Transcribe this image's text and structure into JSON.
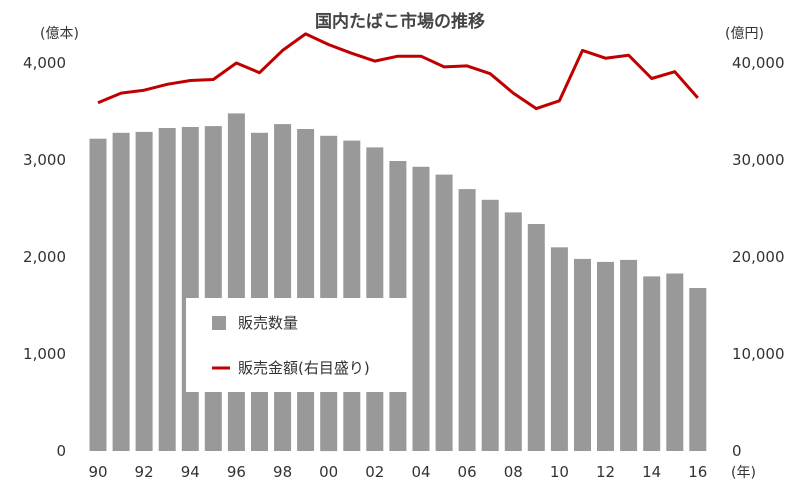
{
  "chart_data": {
    "type": "bar+line",
    "title": "国内たばこ市場の推移",
    "left_unit": "(億本)",
    "right_unit": "(億円)",
    "x_unit": "(年)",
    "x": [
      1990,
      1991,
      1992,
      1993,
      1994,
      1995,
      1996,
      1997,
      1998,
      1999,
      2000,
      2001,
      2002,
      2003,
      2004,
      2005,
      2006,
      2007,
      2008,
      2009,
      2010,
      2011,
      2012,
      2013,
      2014,
      2015,
      2016
    ],
    "x_tick_labels": [
      "90",
      "92",
      "94",
      "96",
      "98",
      "00",
      "02",
      "04",
      "06",
      "08",
      "10",
      "12",
      "14",
      "16"
    ],
    "left_axis": {
      "min": 0,
      "max": 4000,
      "ticks": [
        "0",
        "1,000",
        "2,000",
        "3,000",
        "4,000"
      ]
    },
    "right_axis": {
      "min": 0,
      "max": 40000,
      "ticks": [
        "0",
        "10,000",
        "20,000",
        "30,000",
        "40,000"
      ]
    },
    "series": [
      {
        "name": "販売数量",
        "type": "bar",
        "axis": "left",
        "color": "#999999",
        "values": [
          3220,
          3280,
          3290,
          3330,
          3340,
          3350,
          3480,
          3280,
          3370,
          3320,
          3250,
          3200,
          3130,
          2990,
          2930,
          2850,
          2700,
          2590,
          2460,
          2340,
          2100,
          1980,
          1950,
          1970,
          1800,
          1830,
          1680
        ]
      },
      {
        "name": "販売金額(右目盛り)",
        "type": "line",
        "axis": "right",
        "color": "#c00000",
        "values": [
          35900,
          36900,
          37200,
          37800,
          38200,
          38300,
          40000,
          39000,
          41300,
          43000,
          41900,
          41000,
          40200,
          40700,
          40700,
          39600,
          39700,
          38900,
          36900,
          35300,
          36100,
          41300,
          40500,
          40800,
          38400,
          39100,
          36400
        ]
      }
    ],
    "legend_position": "center-left, inside plot",
    "grid": false
  }
}
